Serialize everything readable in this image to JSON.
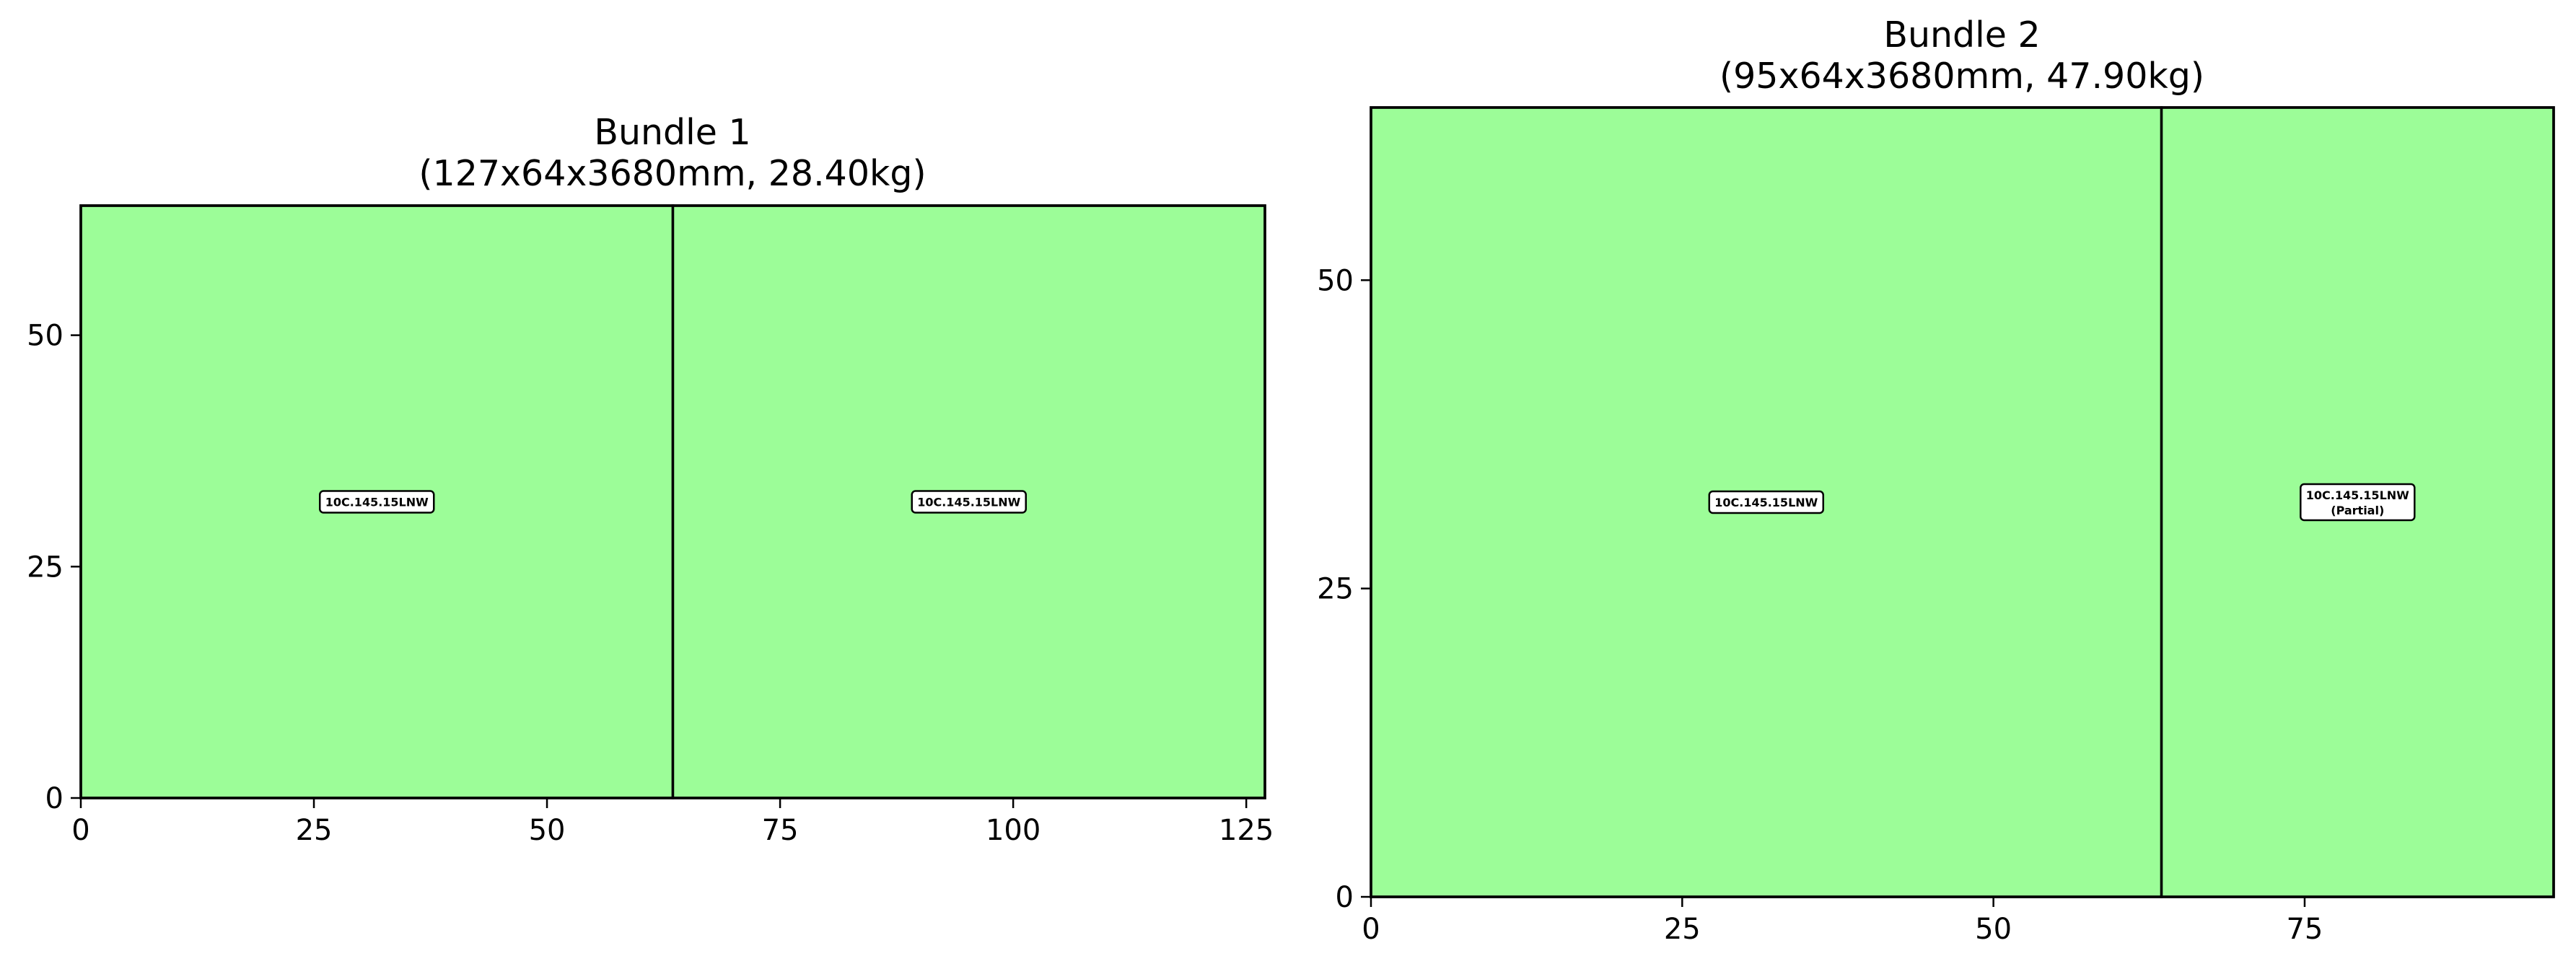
{
  "chart_data": [
    {
      "type": "bar",
      "title": "Bundle 1",
      "subtitle": "(127x64x3680mm, 28.40kg)",
      "xlabel": "",
      "ylabel": "",
      "xlim": [
        0,
        127
      ],
      "ylim": [
        0,
        64
      ],
      "xticks": [
        0,
        25,
        50,
        75,
        100,
        125
      ],
      "yticks": [
        0,
        25,
        50
      ],
      "grid": false,
      "fill_color": "#9cfd98",
      "edge_color": "#000000",
      "pieces": [
        {
          "x": 0,
          "y": 0,
          "width": 63.5,
          "height": 64,
          "label": "10C.145.15LNW",
          "sublabel": ""
        },
        {
          "x": 63.5,
          "y": 0,
          "width": 63.5,
          "height": 64,
          "label": "10C.145.15LNW",
          "sublabel": ""
        }
      ]
    },
    {
      "type": "bar",
      "title": "Bundle 2",
      "subtitle": "(95x64x3680mm, 47.90kg)",
      "xlabel": "",
      "ylabel": "",
      "xlim": [
        0,
        95
      ],
      "ylim": [
        0,
        64
      ],
      "xticks": [
        0,
        25,
        50,
        75
      ],
      "yticks": [
        0,
        25,
        50
      ],
      "grid": false,
      "fill_color": "#9cfd98",
      "edge_color": "#000000",
      "pieces": [
        {
          "x": 0,
          "y": 0,
          "width": 63.5,
          "height": 64,
          "label": "10C.145.15LNW",
          "sublabel": ""
        },
        {
          "x": 63.5,
          "y": 0,
          "width": 31.5,
          "height": 64,
          "label": "10C.145.15LNW",
          "sublabel": "(Partial)"
        }
      ]
    }
  ]
}
